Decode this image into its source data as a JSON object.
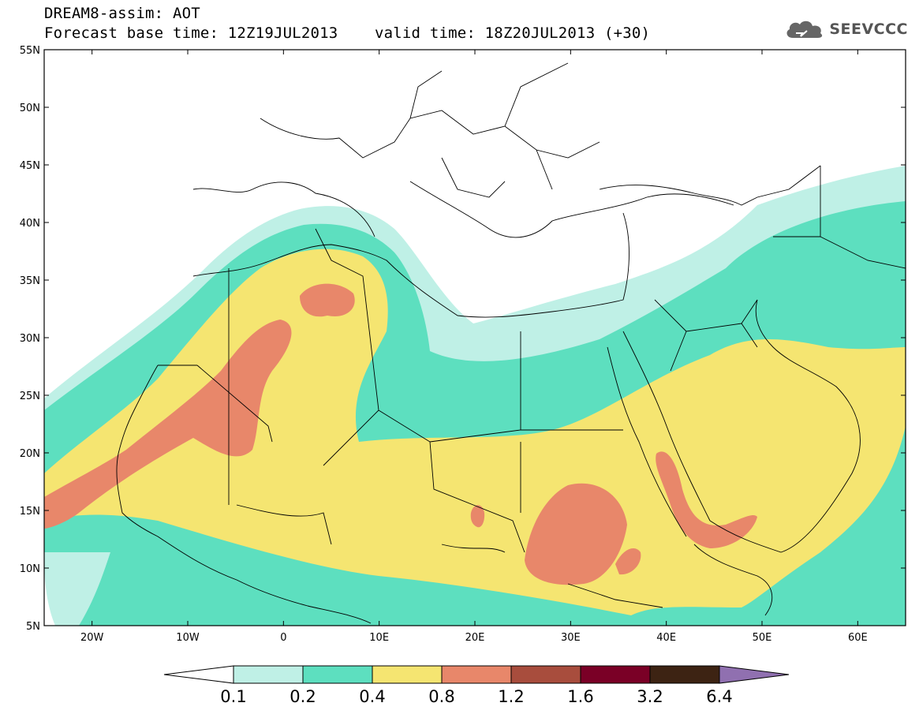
{
  "header": {
    "line1": "DREAM8-assim: AOT",
    "line2": "Forecast base time: 12Z19JUL2013    valid time: 18Z20JUL2013 (+30)"
  },
  "logo": {
    "text": "SEEVCCC",
    "icon": "cloud-logo-icon"
  },
  "map": {
    "lon_range": [
      -25,
      65
    ],
    "lat_range": [
      5,
      55
    ],
    "lat_ticks": [
      {
        "value": 55,
        "label": "55N"
      },
      {
        "value": 50,
        "label": "50N"
      },
      {
        "value": 45,
        "label": "45N"
      },
      {
        "value": 40,
        "label": "40N"
      },
      {
        "value": 35,
        "label": "35N"
      },
      {
        "value": 30,
        "label": "30N"
      },
      {
        "value": 25,
        "label": "25N"
      },
      {
        "value": 20,
        "label": "20N"
      },
      {
        "value": 15,
        "label": "15N"
      },
      {
        "value": 10,
        "label": "10N"
      },
      {
        "value": 5,
        "label": "5N"
      }
    ],
    "lon_ticks": [
      {
        "value": -20,
        "label": "20W"
      },
      {
        "value": -10,
        "label": "10W"
      },
      {
        "value": 0,
        "label": "0"
      },
      {
        "value": 10,
        "label": "10E"
      },
      {
        "value": 20,
        "label": "20E"
      },
      {
        "value": 30,
        "label": "30E"
      },
      {
        "value": 40,
        "label": "40E"
      },
      {
        "value": 50,
        "label": "50E"
      },
      {
        "value": 60,
        "label": "60E"
      }
    ],
    "colors": {
      "c01": "#bff0e6",
      "c02": "#5ddfbf",
      "c04": "#f5e571",
      "c08": "#e8876a",
      "c12": "#a84d3d",
      "c16": "#7a0026",
      "c32": "#3d2313",
      "c64": "#9070b0",
      "border": "#000000"
    }
  },
  "colorbar": {
    "levels": [
      "0.1",
      "0.2",
      "0.4",
      "0.8",
      "1.2",
      "1.6",
      "3.2",
      "6.4"
    ],
    "colors": [
      "#bff0e6",
      "#5ddfbf",
      "#f5e571",
      "#e8876a",
      "#a84d3d",
      "#7a0026",
      "#3d2313"
    ],
    "under_color": "#ffffff",
    "over_color": "#9070b0"
  }
}
